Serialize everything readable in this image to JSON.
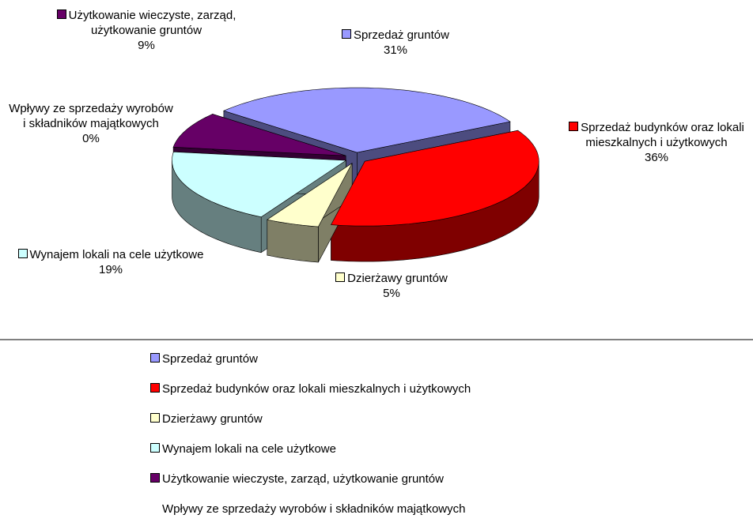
{
  "chart_data": {
    "type": "pie3d",
    "categories": [
      "Sprzedaż gruntów",
      "Sprzedaż budynków oraz lokali mieszkalnych i użytkowych",
      "Dzierżawy gruntów",
      "Wynajem lokali na cele użytkowe",
      "Użytkowanie wieczyste, zarząd, użytkowanie gruntów",
      "Wpływy ze sprzedaży wyrobów i składników majątkowych"
    ],
    "values": [
      31,
      36,
      5,
      19,
      9,
      0
    ],
    "value_labels": [
      "31%",
      "36%",
      "5%",
      "19%",
      "9%",
      "0%"
    ],
    "colors": [
      "#9999ff",
      "#ff0000",
      "#ffffcc",
      "#ccffff",
      "#660066",
      null
    ],
    "legend": "bottom"
  }
}
